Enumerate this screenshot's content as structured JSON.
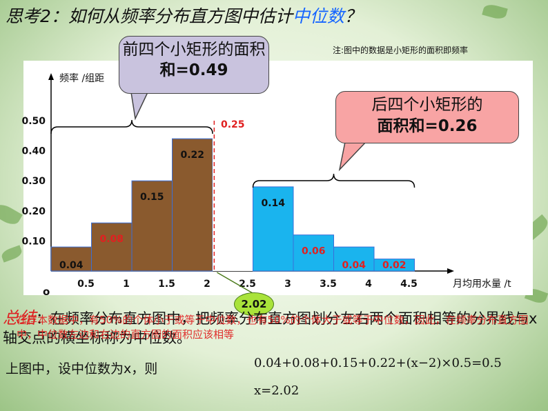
{
  "title": {
    "prefix": "思考2：如何从频率分布直方图中估计",
    "highlight": "中位数",
    "suffix": "？"
  },
  "note": "注:图中的数据是小矩形的面积即频率",
  "callout_left": {
    "line1": "前四个小矩形的面积",
    "line2": "和=0.49"
  },
  "callout_right": {
    "line1": "后四个小矩形的",
    "line2": "面积和=0.26"
  },
  "median_badge": "2.02",
  "summary": {
    "label": "总结",
    "text": "：在频率分布直方图中，把频率分布直方图划分左右两个面积相等的分界线与x轴交点的横坐标称为中位数。",
    "red_text": "在样本数据中，有50%的个体小于或等于中位数，也有50%的个体大于或等于中位数，因此，在频率分布直方图中，中位数左边和右边的直方图的面积应该相等"
  },
  "sentence": "上图中，设中位数为x，则",
  "equation1": "0.04+0.08+0.15+0.22+(x−2)×0.5=0.5",
  "equation2": "x=2.02",
  "chart_data": {
    "type": "bar",
    "ylabel": "频率 /组距",
    "xlabel": "月均用水量 /t",
    "origin_label": "o",
    "x_ticks": [
      "0.5",
      "1",
      "1.5",
      "2",
      "2.5",
      "3",
      "3.5",
      "4",
      "4.5"
    ],
    "y_ticks": [
      "0.10",
      "0.20",
      "0.30",
      "0.40",
      "0.50"
    ],
    "bars": [
      {
        "x0": 0,
        "x1": 0.5,
        "freq": 0.04,
        "label": "0.04",
        "label_color": "#111111",
        "group": "left"
      },
      {
        "x0": 0.5,
        "x1": 1,
        "freq": 0.08,
        "label": "0.08",
        "label_color": "#e02020",
        "group": "left"
      },
      {
        "x0": 1,
        "x1": 1.5,
        "freq": 0.15,
        "label": "0.15",
        "label_color": "#111111",
        "group": "left"
      },
      {
        "x0": 1.5,
        "x1": 2,
        "freq": 0.22,
        "label": "0.22",
        "label_color": "#111111",
        "group": "left"
      },
      {
        "x0": 2,
        "x1": 2.5,
        "freq": 0.25,
        "label": "0.25",
        "label_color": "#e02020",
        "group": "middle"
      },
      {
        "x0": 2.5,
        "x1": 3,
        "freq": 0.14,
        "label": "0.14",
        "label_color": "#111111",
        "group": "right"
      },
      {
        "x0": 3,
        "x1": 3.5,
        "freq": 0.06,
        "label": "0.06",
        "label_color": "#e02020",
        "group": "right"
      },
      {
        "x0": 3.5,
        "x1": 4,
        "freq": 0.04,
        "label": "0.04",
        "label_color": "#e02020",
        "group": "right"
      },
      {
        "x0": 4,
        "x1": 4.5,
        "freq": 0.02,
        "label": "0.02",
        "label_color": "#e02020",
        "group": "right"
      }
    ],
    "median": 2.02,
    "colors": {
      "left": "#8a5a2e",
      "middle": "#ffffff",
      "right": "#1ab4ee",
      "median_line": "#e02020"
    }
  }
}
